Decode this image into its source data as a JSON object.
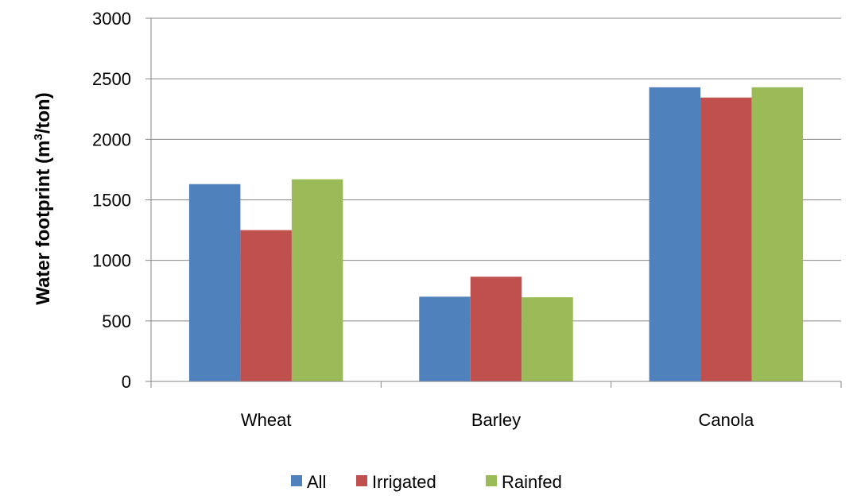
{
  "chart_data": {
    "type": "bar",
    "categories": [
      "Wheat",
      "Barley",
      "Canola"
    ],
    "series": [
      {
        "name": "All",
        "values": [
          1630,
          700,
          2430
        ],
        "color": "#4F81BD"
      },
      {
        "name": "Irrigated",
        "values": [
          1250,
          865,
          2345
        ],
        "color": "#C0504D"
      },
      {
        "name": "Rainfed",
        "values": [
          1670,
          695,
          2430
        ],
        "color": "#9BBB59"
      }
    ],
    "ylabel_main": "Water footprint (m",
    "ylabel_sup": "3",
    "ylabel_end": "/ton)",
    "ylim": [
      0,
      3000
    ],
    "yticks": [
      "0",
      "500",
      "1000",
      "1500",
      "2000",
      "2500",
      "3000"
    ],
    "grid": true,
    "legend_position": "bottom"
  }
}
